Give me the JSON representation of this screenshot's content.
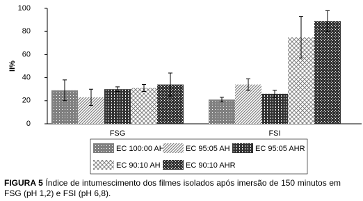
{
  "chart_data": {
    "type": "bar",
    "y_label": "II%",
    "categories": [
      "FSG",
      "FSI"
    ],
    "series": [
      {
        "name": "EC 100:00 AH",
        "color": "#808080",
        "pattern": "dots",
        "values": [
          29,
          21
        ],
        "errors": [
          9,
          2
        ]
      },
      {
        "name": "EC 95:05 AH",
        "color": "#808080",
        "pattern": "diagonal",
        "values": [
          23,
          34
        ],
        "errors": [
          7,
          5
        ]
      },
      {
        "name": "EC 95:05 AHR",
        "color": "#333333",
        "pattern": "bricks",
        "values": [
          30,
          26
        ],
        "errors": [
          2,
          3
        ]
      },
      {
        "name": "EC 90:10 AH",
        "color": "#808080",
        "pattern": "cross",
        "values": [
          31,
          75
        ],
        "errors": [
          3,
          18
        ]
      },
      {
        "name": "EC 90:10 AHR",
        "color": "#333333",
        "pattern": "checker",
        "values": [
          34,
          89
        ],
        "errors": [
          10,
          9
        ]
      }
    ],
    "ylim": [
      0,
      100
    ],
    "yticks": [
      0,
      20,
      40,
      60,
      80,
      100
    ],
    "grid": false,
    "figure_label": "FIGURA 5",
    "caption": "Índice de intumescimento dos filmes isolados após imersão de 150 minutos em FSG (pH 1,2) e FSI (pH 6,8)."
  }
}
